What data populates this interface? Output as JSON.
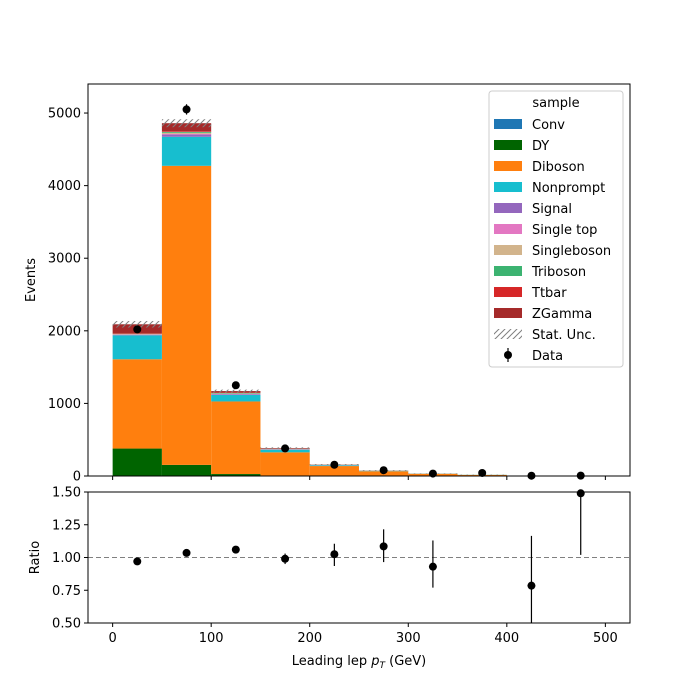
{
  "chart_data": [
    {
      "type": "bar",
      "stacked": true,
      "ylabel": "Events",
      "xlim": [
        -25,
        525
      ],
      "ylim": [
        0,
        5400
      ],
      "bin_edges": [
        0,
        50,
        100,
        150,
        200,
        250,
        300,
        350,
        400,
        450,
        500
      ],
      "x_ticks": [
        0,
        100,
        200,
        300,
        400,
        500
      ],
      "y_ticks": [
        0,
        1000,
        2000,
        3000,
        4000,
        5000
      ],
      "legend": {
        "title": "sample",
        "placement": "top-right"
      },
      "series": [
        {
          "name": "Conv",
          "color": "#1f77b4",
          "values": [
            3,
            3,
            2,
            1,
            0,
            0,
            0,
            0,
            0,
            0
          ]
        },
        {
          "name": "DY",
          "color": "#006400",
          "values": [
            375,
            150,
            25,
            5,
            2,
            1,
            0,
            0,
            0,
            0
          ]
        },
        {
          "name": "Diboson",
          "color": "#ff7f0e",
          "values": [
            1230,
            4120,
            1000,
            320,
            135,
            65,
            30,
            15,
            5,
            3
          ]
        },
        {
          "name": "Nonprompt",
          "color": "#17becf",
          "values": [
            330,
            400,
            90,
            35,
            10,
            5,
            2,
            1,
            0,
            0
          ]
        },
        {
          "name": "Signal",
          "color": "#9467bd",
          "values": [
            8,
            30,
            10,
            4,
            2,
            1,
            0,
            0,
            0,
            0
          ]
        },
        {
          "name": "Single top",
          "color": "#e377c2",
          "values": [
            4,
            10,
            5,
            3,
            1,
            0,
            0,
            0,
            0,
            0
          ]
        },
        {
          "name": "Singleboson",
          "color": "#d2b48c",
          "values": [
            5,
            15,
            5,
            2,
            1,
            0,
            0,
            0,
            0,
            0
          ]
        },
        {
          "name": "Triboson",
          "color": "#3cb371",
          "values": [
            5,
            12,
            8,
            5,
            3,
            2,
            1,
            1,
            0,
            0
          ]
        },
        {
          "name": "Ttbar",
          "color": "#d62728",
          "values": [
            10,
            10,
            5,
            5,
            2,
            1,
            1,
            0,
            0,
            0
          ]
        },
        {
          "name": "ZGamma",
          "color": "#a52a2a",
          "values": [
            120,
            110,
            20,
            5,
            2,
            1,
            0,
            0,
            0,
            0
          ]
        }
      ],
      "uncertainty": {
        "name": "Stat. Unc.",
        "values": [
          45,
          55,
          20,
          10,
          6,
          5,
          3,
          2,
          1,
          1
        ]
      },
      "data": {
        "name": "Data",
        "x": [
          25,
          75,
          125,
          175,
          225,
          275,
          325,
          375,
          425,
          475
        ],
        "y": [
          2020,
          5050,
          1250,
          380,
          155,
          80,
          33,
          42,
          4,
          5
        ],
        "yerr": [
          45,
          71,
          35,
          19,
          12,
          9,
          6,
          6,
          2,
          2
        ]
      }
    },
    {
      "type": "scatter",
      "xlabel": "Leading lep p_T (GeV)",
      "xlabel_main": "Leading lep ",
      "xlabel_var": "p",
      "xlabel_sub": "T",
      "xlabel_unit": " (GeV)",
      "ylabel": "Ratio",
      "xlim": [
        -25,
        525
      ],
      "ylim": [
        0.5,
        1.5
      ],
      "x_ticks": [
        0,
        100,
        200,
        300,
        400,
        500
      ],
      "y_ticks": [
        0.5,
        0.75,
        1.0,
        1.25,
        1.5
      ],
      "y_tick_labels": [
        "0.50",
        "0.75",
        "1.00",
        "1.25",
        "1.50"
      ],
      "reference_line": 1.0,
      "points": {
        "x": [
          25,
          75,
          125,
          175,
          225,
          275,
          325,
          425,
          475
        ],
        "y": [
          0.97,
          1.035,
          1.06,
          0.99,
          1.025,
          1.085,
          0.93,
          0.785,
          1.49
        ],
        "err_low": [
          0.0,
          0.0,
          0.0,
          0.04,
          0.09,
          0.12,
          0.16,
          0.38,
          0.47
        ],
        "err_high": [
          0.0,
          0.0,
          0.0,
          0.04,
          0.08,
          0.13,
          0.2,
          0.38,
          0.47
        ]
      }
    }
  ]
}
